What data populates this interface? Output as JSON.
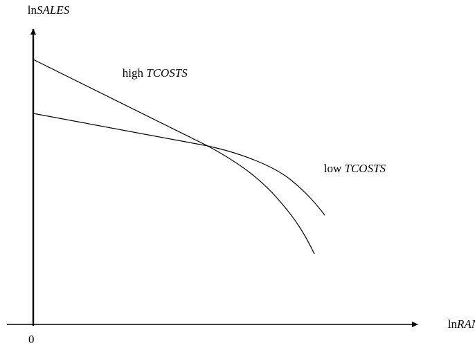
{
  "axes": {
    "y_axis_label_prefix": "ln",
    "y_axis_label_var": "SALES",
    "x_axis_label_prefix": "ln",
    "x_axis_label_var": "RANK",
    "origin_label": "0"
  },
  "curves": {
    "high": {
      "label_prefix": "high ",
      "label_var": "TCOSTS"
    },
    "low": {
      "label_prefix": "low ",
      "label_var": "TCOSTS"
    }
  },
  "colors": {
    "line": "#000000",
    "background": "#ffffff"
  }
}
